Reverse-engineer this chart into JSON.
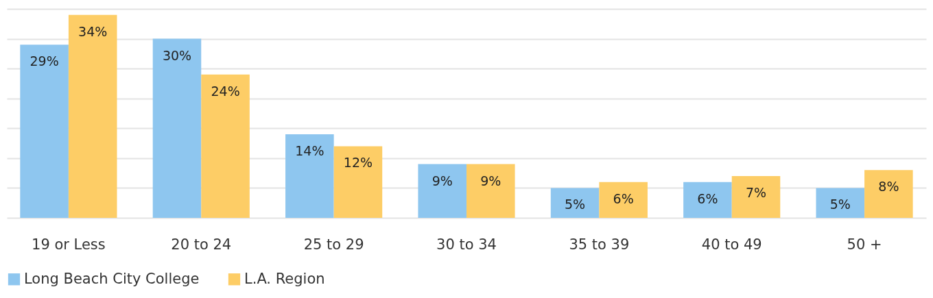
{
  "chart_data": {
    "type": "bar",
    "categories": [
      "19 or Less",
      "20 to 24",
      "25 to 29",
      "30 to 34",
      "35 to 39",
      "40 to 49",
      "50 +"
    ],
    "series": [
      {
        "name": "Long Beach City College",
        "color": "#8ec6ef",
        "values": [
          29,
          30,
          14,
          9,
          5,
          6,
          5
        ],
        "value_labels": [
          "29%",
          "30%",
          "14%",
          "9%",
          "5%",
          "6%",
          "5%"
        ]
      },
      {
        "name": "L.A. Region",
        "color": "#fdcd66",
        "values": [
          34,
          24,
          12,
          9,
          6,
          7,
          8
        ],
        "value_labels": [
          "34%",
          "24%",
          "12%",
          "9%",
          "6%",
          "7%",
          "8%"
        ]
      }
    ],
    "ylim": [
      0,
      35
    ],
    "yticks": [
      {
        "value": 0,
        "label": null
      },
      {
        "value": 5,
        "label": null
      },
      {
        "value": 10,
        "label": null
      },
      {
        "value": 15,
        "label": null
      },
      {
        "value": 20,
        "label": null
      },
      {
        "value": 25,
        "label": null
      },
      {
        "value": 30,
        "label": null
      },
      {
        "value": 35,
        "label": null
      }
    ],
    "tick_labels": "x",
    "grid": "y",
    "legend": "bottom"
  }
}
